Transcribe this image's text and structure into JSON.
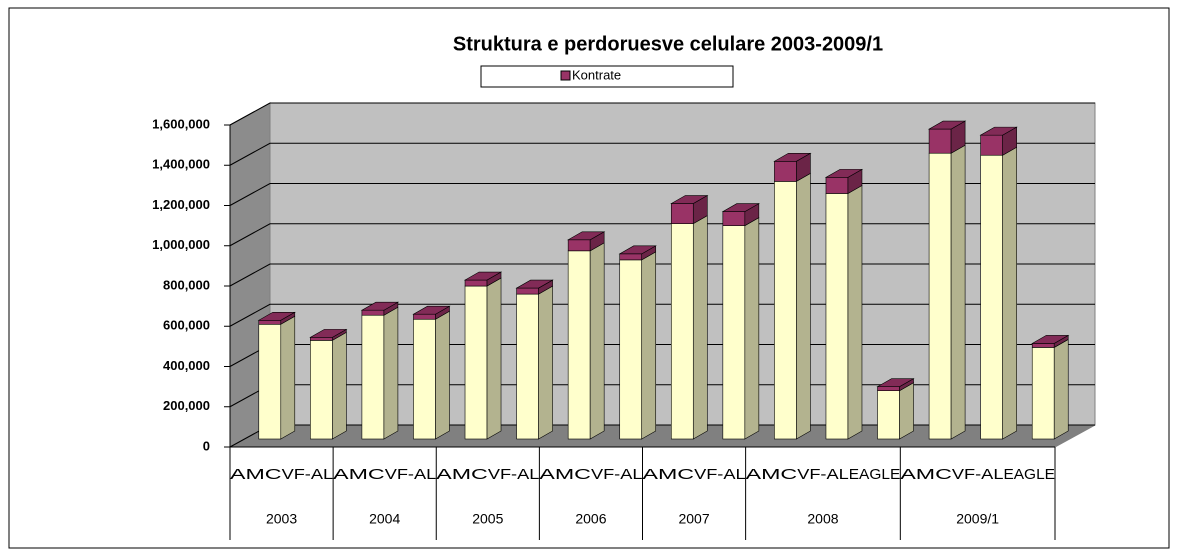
{
  "chart_data": {
    "type": "bar3d_stacked",
    "title": "Struktura e perdoruesve celulare 2003-2009/1",
    "categories": [
      "AMC",
      "VF-AL",
      "AMC",
      "VF-AL",
      "AMC",
      "VF-AL",
      "AMC",
      "VF-AL",
      "AMC",
      "VF-AL",
      "AMC",
      "VF-AL",
      "EAGLE",
      "AMC",
      "VF-AL",
      "EAGLE"
    ],
    "groups": [
      {
        "label": "2003",
        "span": 2
      },
      {
        "label": "2004",
        "span": 2
      },
      {
        "label": "2005",
        "span": 2
      },
      {
        "label": "2006",
        "span": 2
      },
      {
        "label": "2007",
        "span": 2
      },
      {
        "label": "2008",
        "span": 3
      },
      {
        "label": "2009/1",
        "span": 3
      }
    ],
    "series": [
      {
        "color": "#ffffcc",
        "values": [
          570000,
          490000,
          615000,
          595000,
          760000,
          720000,
          935000,
          890000,
          1070000,
          1060000,
          1280000,
          1220000,
          240000,
          1420000,
          1410000,
          455000
        ]
      },
      {
        "name": "Kontrate",
        "color": "#993366",
        "values": [
          20000,
          15000,
          25000,
          25000,
          30000,
          30000,
          55000,
          30000,
          100000,
          70000,
          100000,
          80000,
          20000,
          120000,
          100000,
          20000
        ]
      }
    ],
    "ylim": [
      0,
      1600000
    ],
    "yticks": [
      0,
      {
        "value": 200000,
        "label": "200,000"
      },
      {
        "value": 400000,
        "label": "400,000"
      },
      {
        "value": 600000,
        "label": "600,000"
      },
      {
        "value": 800000,
        "label": "800,000"
      },
      {
        "value": 1000000,
        "label": "1,000,000"
      },
      {
        "value": 1200000,
        "label": "1,200,000"
      },
      {
        "value": 1400000,
        "label": "1,400,000"
      },
      {
        "value": 1600000,
        "label": "1,600,000"
      }
    ],
    "grid": true
  }
}
